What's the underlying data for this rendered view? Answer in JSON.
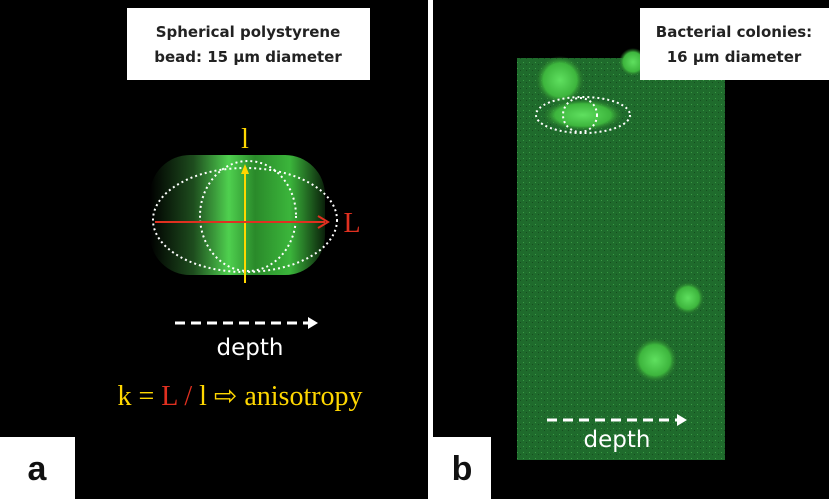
{
  "panels": [
    {
      "label": "a",
      "title": [
        "Spherical polystyrene",
        "bead: 15 µm diameter"
      ],
      "short_axis": "l",
      "long_axis": "L",
      "direction": "depth",
      "formula": {
        "k": "k =",
        "L": "L",
        "slash": "/",
        "l": "l",
        "arrow": "⇨",
        "text": "anisotropy"
      }
    },
    {
      "label": "b",
      "title": [
        "Bacterial colonies:",
        "16 µm diameter"
      ],
      "direction": "depth"
    }
  ]
}
